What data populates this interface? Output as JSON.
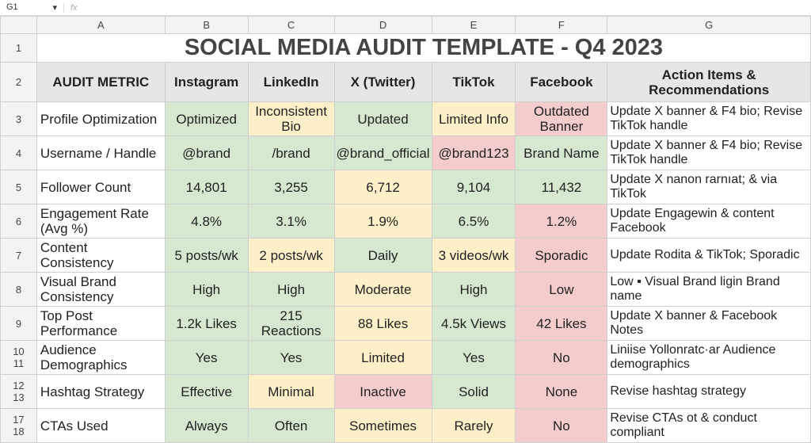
{
  "formula_bar": {
    "cell_ref": "G1",
    "fx_icon": "fx"
  },
  "columns": [
    "A",
    "B",
    "C",
    "D",
    "E",
    "F",
    "G"
  ],
  "title": "SOCIAL MEDIA AUDIT TEMPLATE - Q4 2023",
  "headers": [
    "AUDIT METRIC",
    "Instagram",
    "LinkedIn",
    "X (Twitter)",
    "TikTok",
    "Facebook",
    "Action Items & Recommendations"
  ],
  "colors": {
    "green": "#d6e9d0",
    "yellow": "#fdf0c8",
    "red": "#f3cccb"
  },
  "rows": [
    {
      "num": "3",
      "metric": "Profile Optimization",
      "values": [
        "Optimized",
        "Inconsistent Bio",
        "Updated",
        "Limited Info",
        "Outdated Banner"
      ],
      "status": [
        "g",
        "y",
        "g",
        "y",
        "r"
      ],
      "action": "Update X banner & F4 bio; Revise TikTok handle"
    },
    {
      "num": "4",
      "metric": "Username / Handle",
      "values": [
        "@brand",
        "/brand",
        "@brand_official",
        "@brand123",
        "Brand Name"
      ],
      "status": [
        "g",
        "g",
        "g",
        "r",
        "g"
      ],
      "action": "Update X banner & F4 bio; Revise TikTok handle"
    },
    {
      "num": "5",
      "metric": "Follower Count",
      "values": [
        "14,801",
        "3,255",
        "6,712",
        "9,104",
        "11,432"
      ],
      "status": [
        "g",
        "g",
        "y",
        "g",
        "g"
      ],
      "action": "Update X nanon rarnıat; & via TikTok"
    },
    {
      "num": "6",
      "metric": "Engagement Rate (Avg %)",
      "values": [
        "4.8%",
        "3.1%",
        "1.9%",
        "6.5%",
        "1.2%"
      ],
      "status": [
        "g",
        "g",
        "y",
        "g",
        "r"
      ],
      "action": "Update Engagewin & content Facebook"
    },
    {
      "num": "7",
      "metric": "Content Consistency",
      "values": [
        "5 posts/wk",
        "2 posts/wk",
        "Daily",
        "3 videos/wk",
        "Sporadic"
      ],
      "status": [
        "g",
        "y",
        "g",
        "y",
        "r"
      ],
      "action": "Update Rodita & TikTok; Sporadic"
    },
    {
      "num": "8",
      "metric": "Visual Brand Consistency",
      "values": [
        "High",
        "High",
        "Moderate",
        "High",
        "Low"
      ],
      "status": [
        "g",
        "g",
        "y",
        "g",
        "r"
      ],
      "action": "Low ▪ Visual Brand ligin Brand name"
    },
    {
      "num": "9",
      "metric": "Top Post Performance",
      "values": [
        "1.2k Likes",
        "215 Reactions",
        "88 Likes",
        "4.5k Views",
        "42 Likes"
      ],
      "status": [
        "g",
        "g",
        "y",
        "g",
        "r"
      ],
      "action": "Update X banner & Facebook Notes"
    },
    {
      "num": "10",
      "num2": "11",
      "metric": "Audience Demographics",
      "values": [
        "Yes",
        "Yes",
        "Limited",
        "Yes",
        "No"
      ],
      "status": [
        "g",
        "g",
        "y",
        "g",
        "r"
      ],
      "action": "Liniise Yollonratc·ar Audience demographics"
    },
    {
      "num": "12",
      "num2": "13",
      "metric": "Hashtag Strategy",
      "values": [
        "Effective",
        "Minimal",
        "Inactive",
        "Solid",
        "None"
      ],
      "status": [
        "g",
        "y",
        "r",
        "g",
        "r"
      ],
      "action": "Revise hashtag strategy"
    },
    {
      "num": "17",
      "num2": "18",
      "metric": "CTAs Used",
      "values": [
        "Always",
        "Often",
        "Sometimes",
        "Rarely",
        "No"
      ],
      "status": [
        "g",
        "g",
        "y",
        "y",
        "r"
      ],
      "action": "Revise CTAs ot & conduct compliant"
    }
  ]
}
